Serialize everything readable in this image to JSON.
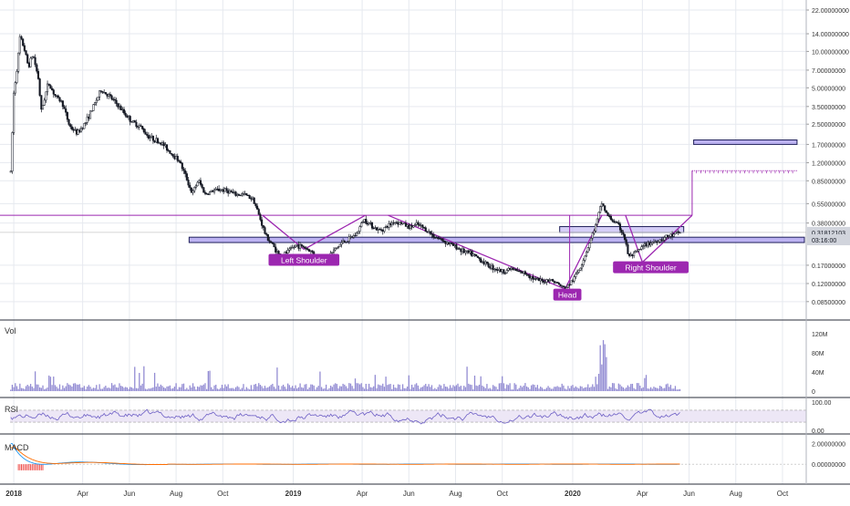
{
  "colors": {
    "candle": "#131722",
    "pattern": "#9c27b0",
    "zone_fill": "#b2a6f0",
    "zone_stroke": "#1f1f5a",
    "volume": "#6f66c4",
    "rsi_line": "#6d5fc5",
    "rsi_band": "#ede7f6",
    "macd_line": "#2196f3",
    "signal_line": "#ff6d00",
    "grid": "#e6e9ef",
    "axis_text": "#333333",
    "pane_sep": "#2a2e39",
    "price_tag": "#d1d4dc"
  },
  "chart_data": [
    {
      "type": "candlestick",
      "pane": "price",
      "title": "",
      "x_tick_labels": [
        "2018",
        "Apr",
        "Jun",
        "Aug",
        "Oct",
        "2019",
        "Apr",
        "Jun",
        "Aug",
        "Oct",
        "2020",
        "Apr",
        "Jun",
        "Aug",
        "Oct"
      ],
      "y_scale": "log",
      "y_tick_labels": [
        "22.00000000",
        "14.00000000",
        "10.00000000",
        "7.00000000",
        "5.00000000",
        "3.50000000",
        "2.50000000",
        "1.70000000",
        "1.20000000",
        "0.85000000",
        "0.55000000",
        "0.38000000",
        "0.17000000",
        "0.12000000",
        "0.08500000"
      ],
      "price_tags": [
        {
          "label": "0.31812103",
          "value": 0.318
        },
        {
          "label": "03:16:00",
          "value": 0.276
        }
      ],
      "x_range": [
        "2017-12-14",
        "2020-11-01"
      ],
      "y_range": [
        0.07,
        24
      ],
      "series": [
        {
          "points": [
            [
              "2017-12-28",
              1.0
            ],
            [
              "2018-01-01",
              4.5
            ],
            [
              "2018-01-06",
              8.0
            ],
            [
              "2018-01-09",
              13.0
            ],
            [
              "2018-01-14",
              11.0
            ],
            [
              "2018-01-20",
              7.5
            ],
            [
              "2018-01-26",
              9.5
            ],
            [
              "2018-02-02",
              6.0
            ],
            [
              "2018-02-06",
              3.2
            ],
            [
              "2018-02-15",
              5.5
            ],
            [
              "2018-02-25",
              4.2
            ],
            [
              "2018-03-05",
              3.8
            ],
            [
              "2018-03-15",
              2.4
            ],
            [
              "2018-03-25",
              2.1
            ],
            [
              "2018-04-05",
              2.6
            ],
            [
              "2018-04-15",
              3.5
            ],
            [
              "2018-04-25",
              4.8
            ],
            [
              "2018-05-05",
              4.3
            ],
            [
              "2018-05-15",
              3.7
            ],
            [
              "2018-05-25",
              3.1
            ],
            [
              "2018-06-05",
              2.6
            ],
            [
              "2018-06-15",
              2.4
            ],
            [
              "2018-06-25",
              2.0
            ],
            [
              "2018-07-05",
              1.85
            ],
            [
              "2018-07-15",
              1.7
            ],
            [
              "2018-07-25",
              1.45
            ],
            [
              "2018-08-05",
              1.25
            ],
            [
              "2018-08-15",
              0.88
            ],
            [
              "2018-08-22",
              0.66
            ],
            [
              "2018-08-30",
              0.86
            ],
            [
              "2018-09-08",
              0.66
            ],
            [
              "2018-09-18",
              0.7
            ],
            [
              "2018-09-28",
              0.72
            ],
            [
              "2018-10-08",
              0.7
            ],
            [
              "2018-10-18",
              0.65
            ],
            [
              "2018-10-28",
              0.66
            ],
            [
              "2018-11-10",
              0.6
            ],
            [
              "2018-11-20",
              0.39
            ],
            [
              "2018-11-26",
              0.3
            ],
            [
              "2018-12-05",
              0.25
            ],
            [
              "2018-12-15",
              0.2
            ],
            [
              "2018-12-25",
              0.22
            ],
            [
              "2019-01-05",
              0.25
            ],
            [
              "2019-01-15",
              0.24
            ],
            [
              "2019-01-25",
              0.22
            ],
            [
              "2019-02-05",
              0.19
            ],
            [
              "2019-02-15",
              0.2
            ],
            [
              "2019-02-25",
              0.23
            ],
            [
              "2019-03-05",
              0.26
            ],
            [
              "2019-03-15",
              0.28
            ],
            [
              "2019-03-25",
              0.31
            ],
            [
              "2019-04-03",
              0.41
            ],
            [
              "2019-04-12",
              0.37
            ],
            [
              "2019-04-22",
              0.33
            ],
            [
              "2019-05-02",
              0.35
            ],
            [
              "2019-05-12",
              0.39
            ],
            [
              "2019-05-22",
              0.38
            ],
            [
              "2019-06-02",
              0.35
            ],
            [
              "2019-06-12",
              0.37
            ],
            [
              "2019-06-22",
              0.34
            ],
            [
              "2019-07-02",
              0.3
            ],
            [
              "2019-07-12",
              0.28
            ],
            [
              "2019-07-22",
              0.26
            ],
            [
              "2019-08-02",
              0.24
            ],
            [
              "2019-08-12",
              0.22
            ],
            [
              "2019-08-22",
              0.21
            ],
            [
              "2019-09-02",
              0.19
            ],
            [
              "2019-09-12",
              0.17
            ],
            [
              "2019-09-22",
              0.16
            ],
            [
              "2019-10-02",
              0.15
            ],
            [
              "2019-10-12",
              0.16
            ],
            [
              "2019-10-22",
              0.15
            ],
            [
              "2019-11-02",
              0.145
            ],
            [
              "2019-11-12",
              0.13
            ],
            [
              "2019-11-22",
              0.125
            ],
            [
              "2019-12-02",
              0.13
            ],
            [
              "2019-12-12",
              0.12
            ],
            [
              "2019-12-22",
              0.108
            ],
            [
              "2020-01-02",
              0.13
            ],
            [
              "2020-01-12",
              0.17
            ],
            [
              "2020-01-22",
              0.25
            ],
            [
              "2020-02-01",
              0.38
            ],
            [
              "2020-02-08",
              0.56
            ],
            [
              "2020-02-15",
              0.44
            ],
            [
              "2020-02-22",
              0.4
            ],
            [
              "2020-03-01",
              0.36
            ],
            [
              "2020-03-08",
              0.3
            ],
            [
              "2020-03-14",
              0.2
            ],
            [
              "2020-03-22",
              0.21
            ],
            [
              "2020-04-01",
              0.24
            ],
            [
              "2020-04-10",
              0.26
            ],
            [
              "2020-04-20",
              0.27
            ],
            [
              "2020-05-01",
              0.29
            ],
            [
              "2020-05-10",
              0.3
            ],
            [
              "2020-05-20",
              0.318
            ]
          ]
        }
      ],
      "annotations": [
        {
          "text": "Left Shoulder",
          "kind": "label",
          "date": "2019-01-15",
          "value": 0.19
        },
        {
          "text": "Head",
          "kind": "label",
          "date": "2019-12-25",
          "value": 0.098
        },
        {
          "text": "Right Shoulder",
          "kind": "label",
          "date": "2020-04-12",
          "value": 0.165
        }
      ]
    },
    {
      "type": "bar",
      "pane": "volume",
      "title": "Vol",
      "y_tick_labels": [
        "120M",
        "80M",
        "40M",
        "0"
      ],
      "y_range": [
        0,
        135
      ]
    },
    {
      "type": "line",
      "pane": "rsi",
      "title": "RSI",
      "y_tick_labels": [
        "100.00",
        "0.00"
      ],
      "y_range": [
        0,
        100
      ]
    },
    {
      "type": "line",
      "pane": "macd",
      "title": "MACD",
      "y_tick_labels": [
        "2.00000000",
        "0.00000000"
      ],
      "y_range": [
        -1.5,
        2.5
      ]
    }
  ]
}
